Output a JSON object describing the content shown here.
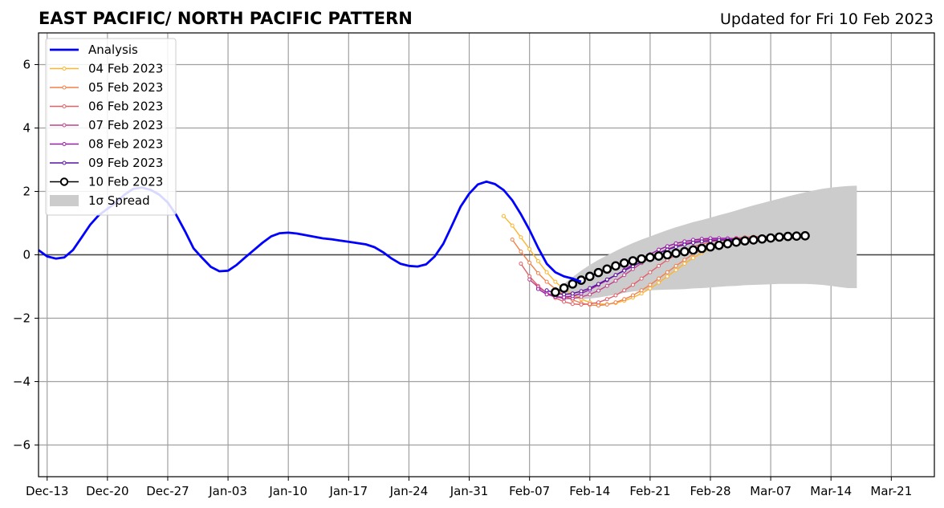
{
  "chart_data": {
    "type": "line",
    "title": "EAST PACIFIC/ NORTH PACIFIC PATTERN",
    "subtitle": "Updated for Fri 10 Feb 2023",
    "xlabel": "",
    "ylabel": "",
    "ylim": [
      -7,
      7
    ],
    "xlim": [
      "2022-12-12",
      "2023-03-26"
    ],
    "yticks": [
      6,
      4,
      2,
      0,
      -2,
      -4,
      -6
    ],
    "ytick_labels": [
      "6",
      "4",
      "2",
      "0",
      "−2",
      "−4",
      "−6"
    ],
    "xticks": [
      "2022-12-13",
      "2022-12-20",
      "2022-12-27",
      "2023-01-03",
      "2023-01-10",
      "2023-01-17",
      "2023-01-24",
      "2023-01-31",
      "2023-02-07",
      "2023-02-14",
      "2023-02-21",
      "2023-02-28",
      "2023-03-07",
      "2023-03-14",
      "2023-03-21"
    ],
    "xtick_labels": [
      "Dec-13",
      "Dec-20",
      "Dec-27",
      "Jan-03",
      "Jan-10",
      "Jan-17",
      "Jan-24",
      "Jan-31",
      "Feb-07",
      "Feb-14",
      "Feb-21",
      "Feb-28",
      "Mar-07",
      "Mar-14",
      "Mar-21"
    ],
    "grid": true,
    "legend_position": "top-left",
    "analysis": {
      "name": "Analysis",
      "color": "#0000ff",
      "start": "2022-12-12",
      "values": [
        0.15,
        -0.05,
        -0.12,
        -0.08,
        0.15,
        0.55,
        0.95,
        1.25,
        1.45,
        1.65,
        1.9,
        2.08,
        2.12,
        2.05,
        1.9,
        1.65,
        1.25,
        0.75,
        0.2,
        -0.1,
        -0.38,
        -0.52,
        -0.5,
        -0.32,
        -0.08,
        0.15,
        0.38,
        0.58,
        0.68,
        0.7,
        0.67,
        0.62,
        0.57,
        0.52,
        0.49,
        0.45,
        0.41,
        0.37,
        0.33,
        0.24,
        0.08,
        -0.12,
        -0.28,
        -0.35,
        -0.37,
        -0.3,
        -0.05,
        0.35,
        0.93,
        1.52,
        1.93,
        2.22,
        2.31,
        2.23,
        2.04,
        1.72,
        1.28,
        0.78,
        0.22,
        -0.28,
        -0.55,
        -0.68,
        -0.75,
        -0.85
      ]
    },
    "series": [
      {
        "name": "04 Feb 2023",
        "color": "#fdb42f",
        "start": "2023-02-04",
        "values": [
          1.22,
          0.92,
          0.55,
          0.18,
          -0.2,
          -0.55,
          -0.85,
          -1.08,
          -1.25,
          -1.4,
          -1.5,
          -1.55,
          -1.56,
          -1.52,
          -1.45,
          -1.35,
          -1.22,
          -1.06,
          -0.88,
          -0.68,
          -0.48,
          -0.28,
          -0.1,
          0.06,
          0.2,
          0.3,
          0.38,
          0.44,
          0.48,
          0.5,
          0.52,
          0.54,
          0.56,
          0.57,
          0.58
        ]
      },
      {
        "name": "05 Feb 2023",
        "color": "#f0804a",
        "start": "2023-02-05",
        "values": [
          0.48,
          0.1,
          -0.25,
          -0.58,
          -0.85,
          -1.08,
          -1.28,
          -1.42,
          -1.52,
          -1.58,
          -1.6,
          -1.57,
          -1.5,
          -1.4,
          -1.28,
          -1.12,
          -0.95,
          -0.75,
          -0.55,
          -0.35,
          -0.16,
          0.02,
          0.16,
          0.27,
          0.36,
          0.43,
          0.48,
          0.52,
          0.55,
          0.57,
          0.58,
          0.59,
          0.6,
          0.6
        ]
      },
      {
        "name": "06 Feb 2023",
        "color": "#e0606a",
        "start": "2023-02-06",
        "values": [
          -0.28,
          -0.68,
          -0.98,
          -1.2,
          -1.36,
          -1.48,
          -1.55,
          -1.57,
          -1.55,
          -1.5,
          -1.4,
          -1.28,
          -1.12,
          -0.95,
          -0.75,
          -0.55,
          -0.35,
          -0.16,
          0.0,
          0.14,
          0.25,
          0.34,
          0.41,
          0.46,
          0.5,
          0.53,
          0.55,
          0.57,
          0.58,
          0.58,
          0.58,
          0.58,
          0.58
        ]
      },
      {
        "name": "07 Feb 2023",
        "color": "#c0428a",
        "start": "2023-02-07",
        "values": [
          -0.78,
          -1.02,
          -1.2,
          -1.32,
          -1.38,
          -1.38,
          -1.33,
          -1.25,
          -1.13,
          -0.98,
          -0.82,
          -0.64,
          -0.45,
          -0.26,
          -0.09,
          0.06,
          0.18,
          0.28,
          0.36,
          0.42,
          0.46,
          0.48,
          0.48,
          0.46,
          0.43,
          0.41,
          0.42,
          0.45,
          0.48,
          0.5,
          0.52,
          0.53
        ]
      },
      {
        "name": "08 Feb 2023",
        "color": "#9a1aa8",
        "start": "2023-02-08",
        "values": [
          -1.08,
          -1.25,
          -1.32,
          -1.34,
          -1.3,
          -1.22,
          -1.1,
          -0.95,
          -0.8,
          -0.64,
          -0.48,
          -0.3,
          -0.14,
          0.02,
          0.16,
          0.27,
          0.36,
          0.42,
          0.47,
          0.5,
          0.52,
          0.52,
          0.52,
          0.51,
          0.5,
          0.5,
          0.51,
          0.53,
          0.55,
          0.56,
          0.57
        ]
      },
      {
        "name": "09 Feb 2023",
        "color": "#5a10a0",
        "start": "2023-02-09",
        "values": [
          -1.12,
          -1.22,
          -1.25,
          -1.22,
          -1.15,
          -1.05,
          -0.92,
          -0.78,
          -0.64,
          -0.5,
          -0.36,
          -0.22,
          -0.08,
          0.05,
          0.16,
          0.25,
          0.32,
          0.38,
          0.42,
          0.44,
          0.46,
          0.47,
          0.48,
          0.49,
          0.5,
          0.52,
          0.53,
          0.55,
          0.56,
          0.57
        ]
      },
      {
        "name": "10 Feb 2023",
        "color": "#000000",
        "start": "2023-02-10",
        "values": [
          -1.18,
          -1.05,
          -0.92,
          -0.8,
          -0.68,
          -0.56,
          -0.45,
          -0.35,
          -0.26,
          -0.19,
          -0.13,
          -0.08,
          -0.04,
          0.0,
          0.05,
          0.1,
          0.15,
          0.2,
          0.25,
          0.3,
          0.35,
          0.4,
          0.44,
          0.47,
          0.5,
          0.53,
          0.56,
          0.58,
          0.59,
          0.6
        ]
      }
    ],
    "spread": {
      "name": "1σ Spread",
      "color": "#cccccc",
      "start": "2023-02-10",
      "upper": [
        -1.18,
        -0.92,
        -0.7,
        -0.5,
        -0.32,
        -0.16,
        -0.02,
        0.12,
        0.25,
        0.37,
        0.48,
        0.58,
        0.68,
        0.78,
        0.87,
        0.95,
        1.03,
        1.1,
        1.17,
        1.25,
        1.32,
        1.4,
        1.48,
        1.56,
        1.63,
        1.7,
        1.77,
        1.84,
        1.91,
        1.97,
        2.03,
        2.08,
        2.12,
        2.15,
        2.17,
        2.18
      ],
      "lower": [
        -1.18,
        -1.3,
        -1.38,
        -1.4,
        -1.38,
        -1.35,
        -1.3,
        -1.26,
        -1.2,
        -1.16,
        -1.13,
        -1.12,
        -1.11,
        -1.1,
        -1.09,
        -1.08,
        -1.06,
        -1.05,
        -1.03,
        -1.01,
        -0.99,
        -0.98,
        -0.96,
        -0.95,
        -0.94,
        -0.93,
        -0.92,
        -0.92,
        -0.92,
        -0.92,
        -0.93,
        -0.95,
        -0.98,
        -1.02,
        -1.05,
        -1.05
      ]
    }
  }
}
